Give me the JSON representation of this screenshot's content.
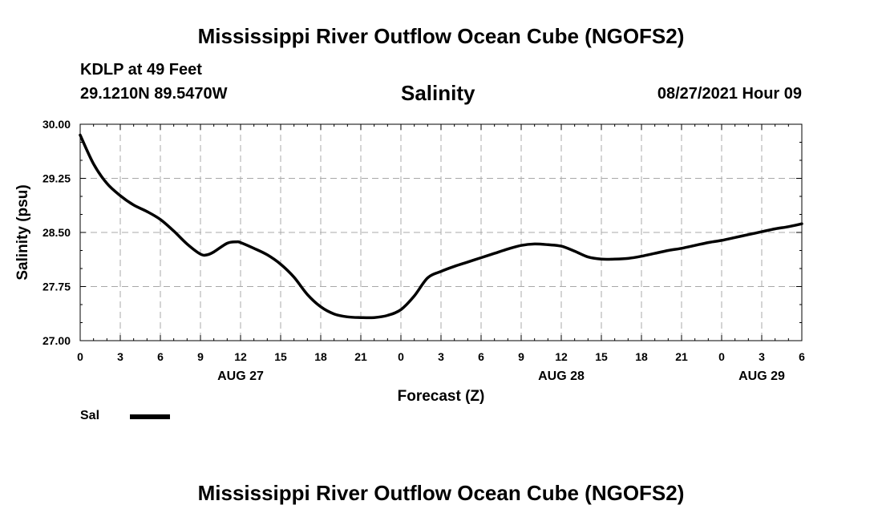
{
  "header": {
    "title": "Mississippi River Outflow Ocean Cube (NGOFS2)",
    "station": "KDLP at 49 Feet",
    "coords": "29.1210N  89.5470W",
    "variable": "Salinity",
    "datetime": "08/27/2021 Hour 09"
  },
  "footer": {
    "title": "Mississippi River Outflow Ocean Cube (NGOFS2)"
  },
  "legend": {
    "label": "Sal"
  },
  "chart_data": {
    "type": "line",
    "title": "Salinity",
    "xlabel": "Forecast (Z)",
    "ylabel": "Salinity (psu)",
    "xlim": [
      0,
      54
    ],
    "ylim": [
      27.0,
      30.0
    ],
    "grid": true,
    "x_ticks": [
      {
        "hour": 0,
        "label": "0"
      },
      {
        "hour": 3,
        "label": "3"
      },
      {
        "hour": 6,
        "label": "6"
      },
      {
        "hour": 9,
        "label": "9"
      },
      {
        "hour": 12,
        "label": "12"
      },
      {
        "hour": 15,
        "label": "15"
      },
      {
        "hour": 18,
        "label": "18"
      },
      {
        "hour": 21,
        "label": "21"
      },
      {
        "hour": 24,
        "label": "0"
      },
      {
        "hour": 27,
        "label": "3"
      },
      {
        "hour": 30,
        "label": "6"
      },
      {
        "hour": 33,
        "label": "9"
      },
      {
        "hour": 36,
        "label": "12"
      },
      {
        "hour": 39,
        "label": "15"
      },
      {
        "hour": 42,
        "label": "18"
      },
      {
        "hour": 45,
        "label": "21"
      },
      {
        "hour": 48,
        "label": "0"
      },
      {
        "hour": 51,
        "label": "3"
      },
      {
        "hour": 54,
        "label": "6"
      }
    ],
    "day_labels": [
      {
        "hour": 12,
        "label": "AUG 27"
      },
      {
        "hour": 36,
        "label": "AUG 28"
      },
      {
        "hour": 51,
        "label": "AUG 29"
      }
    ],
    "y_ticks": [
      "27.00",
      "27.75",
      "28.50",
      "29.25",
      "30.00"
    ],
    "series": [
      {
        "name": "Sal",
        "color": "#000000",
        "x": [
          0,
          1,
          2,
          3,
          4,
          5,
          6,
          7,
          8,
          9,
          9.5,
          10,
          11,
          11.7,
          12,
          13,
          14,
          15,
          16,
          17,
          18,
          19,
          20,
          21,
          22,
          23,
          24,
          25,
          26,
          27,
          28,
          29,
          30,
          31,
          32,
          33,
          34,
          35,
          36,
          37,
          38,
          39,
          40,
          41,
          42,
          43,
          44,
          45,
          46,
          47,
          48,
          49,
          50,
          51,
          52,
          53,
          54
        ],
        "values": [
          29.85,
          29.45,
          29.18,
          29.01,
          28.88,
          28.79,
          28.68,
          28.52,
          28.34,
          28.2,
          28.19,
          28.23,
          28.35,
          28.37,
          28.36,
          28.28,
          28.19,
          28.06,
          27.88,
          27.64,
          27.47,
          27.37,
          27.33,
          27.32,
          27.32,
          27.35,
          27.43,
          27.62,
          27.87,
          27.96,
          28.03,
          28.09,
          28.15,
          28.21,
          28.27,
          28.32,
          28.34,
          28.33,
          28.31,
          28.24,
          28.16,
          28.13,
          28.13,
          28.14,
          28.17,
          28.21,
          28.25,
          28.28,
          28.32,
          28.36,
          28.39,
          28.43,
          28.47,
          28.51,
          28.55,
          28.58,
          28.62
        ]
      }
    ]
  }
}
